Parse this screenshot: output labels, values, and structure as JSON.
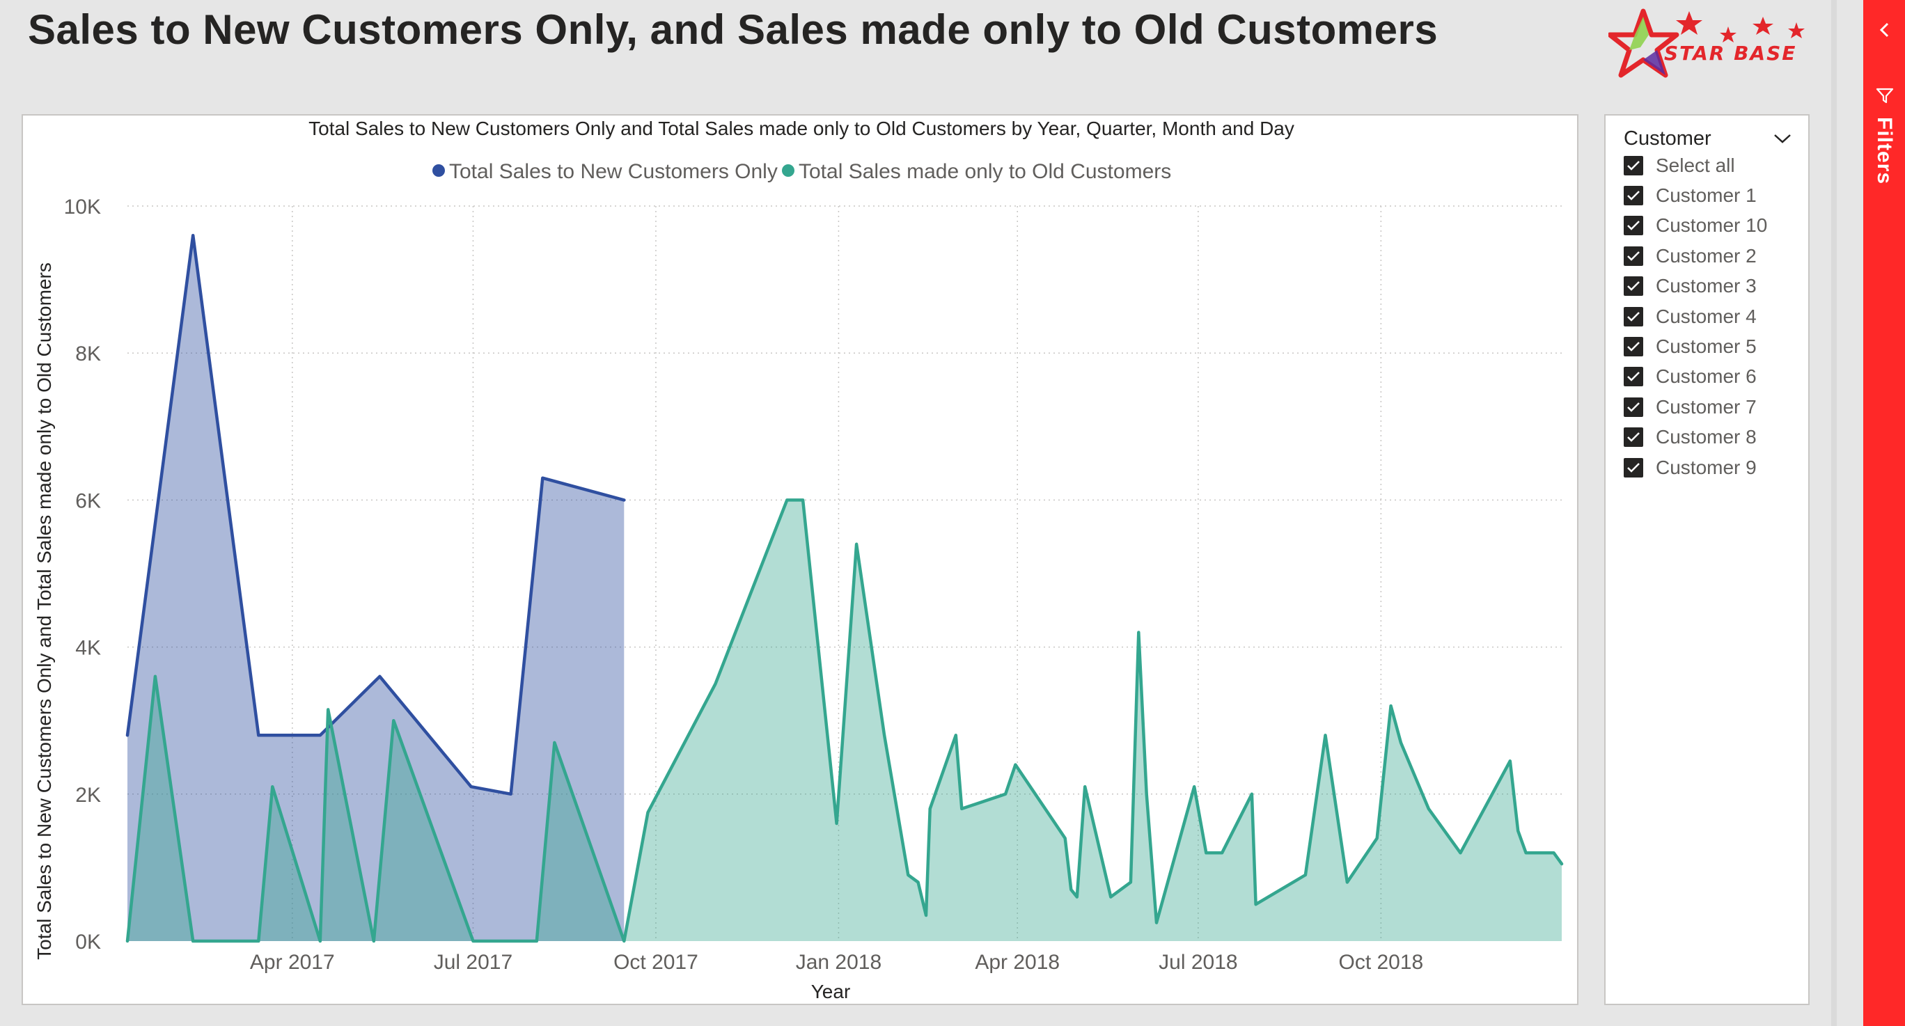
{
  "page": {
    "title": "Sales to New Customers Only, and Sales made only to Old Customers"
  },
  "logo": {
    "text": "STAR BASE"
  },
  "filters_pane": {
    "label": "Filters"
  },
  "slicer": {
    "title": "Customer",
    "items": [
      {
        "label": "Select all",
        "checked": true
      },
      {
        "label": "Customer 1",
        "checked": true
      },
      {
        "label": "Customer 10",
        "checked": true
      },
      {
        "label": "Customer 2",
        "checked": true
      },
      {
        "label": "Customer 3",
        "checked": true
      },
      {
        "label": "Customer 4",
        "checked": true
      },
      {
        "label": "Customer 5",
        "checked": true
      },
      {
        "label": "Customer 6",
        "checked": true
      },
      {
        "label": "Customer 7",
        "checked": true
      },
      {
        "label": "Customer 8",
        "checked": true
      },
      {
        "label": "Customer 9",
        "checked": true
      }
    ]
  },
  "colors": {
    "series_new": "#2f4fa0",
    "series_old": "#34a68f",
    "filters_pane": "#ff2828"
  },
  "chart_data": {
    "type": "area",
    "title": "Total Sales to New Customers Only and Total Sales made only to Old Customers by Year, Quarter, Month and Day",
    "xlabel": "Year",
    "ylabel": "Total Sales to New Customers Only and Total Sales made only to Old Customers",
    "x_ticks": [
      "Apr 2017",
      "Jul 2017",
      "Oct 2017",
      "Jan 2018",
      "Apr 2018",
      "Jul 2018",
      "Oct 2018"
    ],
    "x_tick_dates": [
      "2017-04-01",
      "2017-07-01",
      "2017-10-01",
      "2018-01-01",
      "2018-04-01",
      "2018-07-01",
      "2018-10-01"
    ],
    "y_ticks": [
      "0K",
      "2K",
      "4K",
      "6K",
      "8K",
      "10K"
    ],
    "ylim": [
      0,
      10000
    ],
    "xlim": [
      "2017-01-08",
      "2018-12-31"
    ],
    "grid": true,
    "legend_position": "top-center",
    "series": [
      {
        "name": "Total Sales to New Customers Only",
        "points": [
          [
            "2017-01-08",
            2800
          ],
          [
            "2017-02-10",
            9600
          ],
          [
            "2017-03-15",
            2800
          ],
          [
            "2017-04-15",
            2800
          ],
          [
            "2017-05-15",
            3600
          ],
          [
            "2017-06-30",
            2100
          ],
          [
            "2017-07-20",
            2000
          ],
          [
            "2017-08-05",
            6300
          ],
          [
            "2017-09-15",
            6000
          ]
        ]
      },
      {
        "name": "Total Sales made only to Old Customers",
        "points": [
          [
            "2017-01-08",
            0
          ],
          [
            "2017-01-22",
            3600
          ],
          [
            "2017-02-10",
            0
          ],
          [
            "2017-03-15",
            0
          ],
          [
            "2017-03-22",
            2100
          ],
          [
            "2017-04-15",
            0
          ],
          [
            "2017-04-19",
            3150
          ],
          [
            "2017-05-12",
            0
          ],
          [
            "2017-05-22",
            3000
          ],
          [
            "2017-07-01",
            0
          ],
          [
            "2017-08-02",
            0
          ],
          [
            "2017-08-11",
            2700
          ],
          [
            "2017-09-15",
            0
          ],
          [
            "2017-09-27",
            1750
          ],
          [
            "2017-10-31",
            3500
          ],
          [
            "2017-12-06",
            6000
          ],
          [
            "2017-12-14",
            6000
          ],
          [
            "2017-12-31",
            1600
          ],
          [
            "2018-01-10",
            5400
          ],
          [
            "2018-01-24",
            2800
          ],
          [
            "2018-02-05",
            900
          ],
          [
            "2018-02-10",
            800
          ],
          [
            "2018-02-14",
            350
          ],
          [
            "2018-02-16",
            1800
          ],
          [
            "2018-03-01",
            2800
          ],
          [
            "2018-03-04",
            1800
          ],
          [
            "2018-03-26",
            2000
          ],
          [
            "2018-03-31",
            2400
          ],
          [
            "2018-04-25",
            1400
          ],
          [
            "2018-04-28",
            700
          ],
          [
            "2018-05-01",
            600
          ],
          [
            "2018-05-05",
            2100
          ],
          [
            "2018-05-18",
            600
          ],
          [
            "2018-05-28",
            800
          ],
          [
            "2018-06-01",
            4200
          ],
          [
            "2018-06-05",
            2000
          ],
          [
            "2018-06-10",
            250
          ],
          [
            "2018-06-29",
            2100
          ],
          [
            "2018-07-05",
            1200
          ],
          [
            "2018-07-13",
            1200
          ],
          [
            "2018-07-28",
            2000
          ],
          [
            "2018-07-30",
            500
          ],
          [
            "2018-08-24",
            900
          ],
          [
            "2018-09-03",
            2800
          ],
          [
            "2018-09-14",
            800
          ],
          [
            "2018-09-29",
            1400
          ],
          [
            "2018-10-06",
            3200
          ],
          [
            "2018-10-11",
            2700
          ],
          [
            "2018-10-25",
            1800
          ],
          [
            "2018-11-10",
            1200
          ],
          [
            "2018-12-05",
            2450
          ],
          [
            "2018-12-09",
            1500
          ],
          [
            "2018-12-13",
            1200
          ],
          [
            "2018-12-27",
            1200
          ],
          [
            "2018-12-31",
            1050
          ]
        ]
      }
    ]
  }
}
